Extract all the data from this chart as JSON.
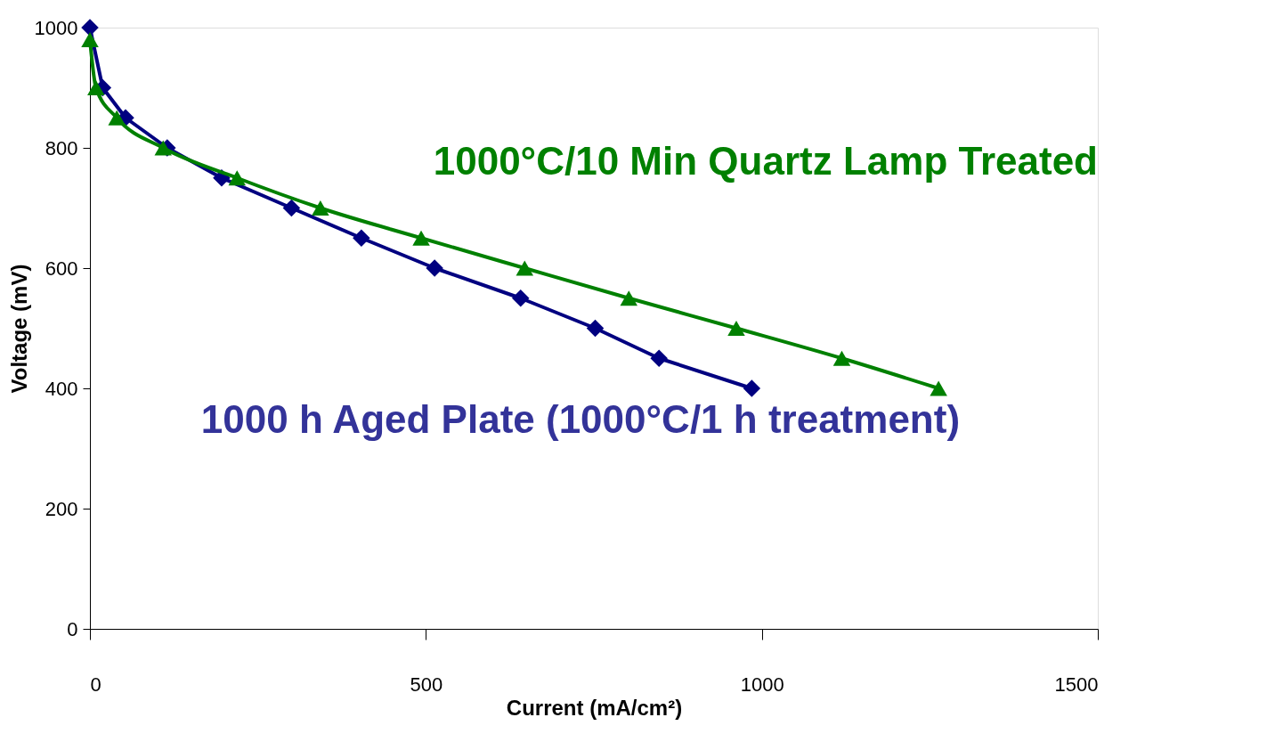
{
  "chart_data": {
    "type": "line",
    "xlabel": "Current (mA/cm²)",
    "ylabel": "Voltage (mV)",
    "xlim": [
      0,
      1500
    ],
    "xticks": [
      0,
      500,
      1000,
      1500
    ],
    "ylim": [
      0,
      1000
    ],
    "yticks": [
      0,
      200,
      400,
      600,
      800,
      1000
    ],
    "grid": false,
    "series": [
      {
        "name": "1000 h Aged Plate (1000°C/1 h treatment)",
        "color": "#000080",
        "marker": "diamond",
        "x": [
          0,
          19,
          53,
          115,
          196,
          300,
          404,
          513,
          641,
          752,
          847,
          985
        ],
        "values": [
          1000,
          900,
          850,
          800,
          750,
          700,
          650,
          600,
          550,
          500,
          450,
          400
        ]
      },
      {
        "name": "1000°C/10 Min Quartz Lamp Treated",
        "color": "#008000",
        "marker": "triangle",
        "x": [
          0,
          9,
          40,
          109,
          219,
          343,
          493,
          647,
          802,
          962,
          1119,
          1263
        ],
        "values": [
          980,
          900,
          850,
          800,
          750,
          700,
          650,
          600,
          550,
          500,
          450,
          400
        ]
      }
    ]
  }
}
